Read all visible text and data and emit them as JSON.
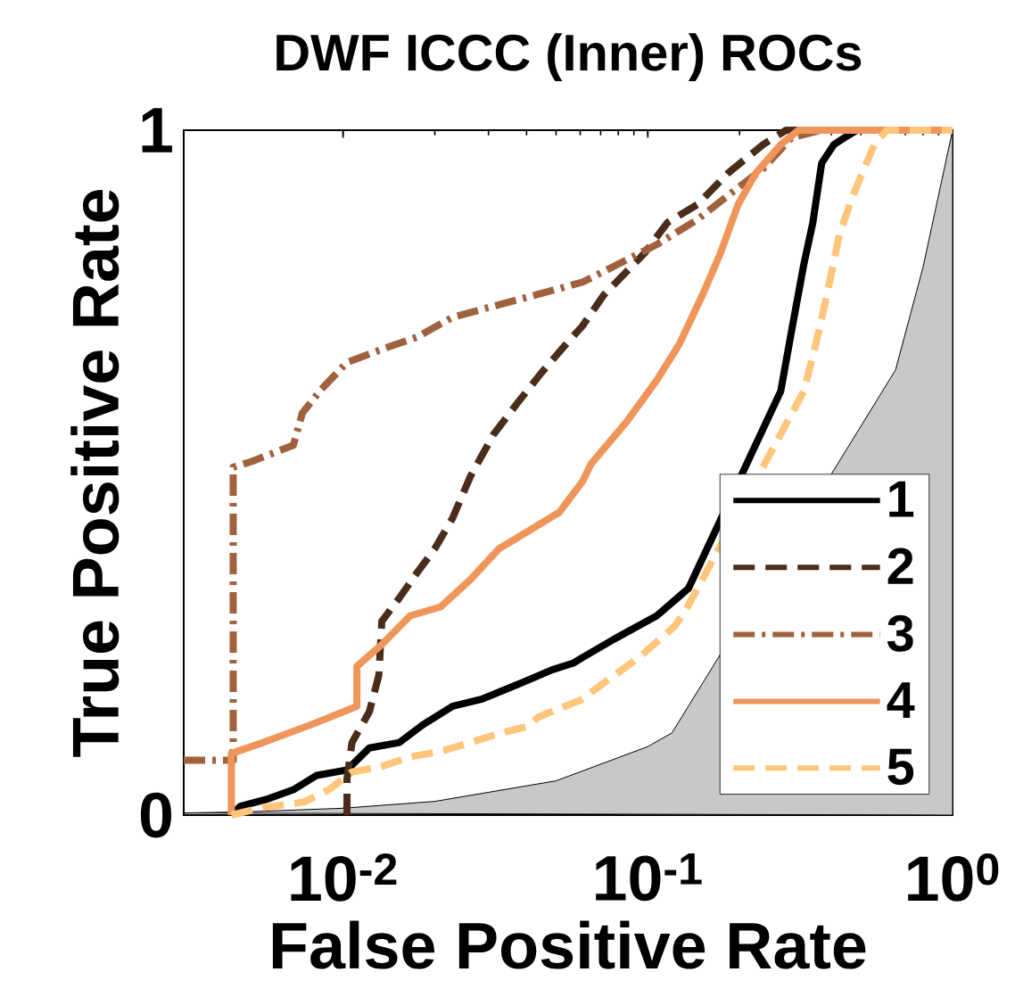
{
  "chart_data": {
    "type": "line",
    "title": "DWF ICCC (Inner) ROCs",
    "xlabel": "False Positive Rate",
    "ylabel": "True Positive Rate",
    "log": "x",
    "xlim": [
      0.003,
      1
    ],
    "ylim": [
      0,
      1
    ],
    "xticks": [
      {
        "value": 0.01,
        "label": "10$^{-2}$"
      },
      {
        "value": 0.1,
        "label": "10$^{-1}$"
      },
      {
        "value": 1,
        "label": "10$^{0}$"
      }
    ],
    "yticks": [
      0,
      1
    ],
    "grid": false,
    "legend": "bottom right",
    "marker": "none",
    "series": [
      {
        "type": "area",
        "color": "#c8c8c8",
        "x": [
          0.003,
          0.005,
          0.01,
          0.02,
          0.05,
          0.1,
          0.12,
          0.65,
          0.8,
          1
        ],
        "values": [
          0.003,
          0.005,
          0.01,
          0.02,
          0.05,
          0.1,
          0.12,
          0.65,
          0.8,
          1
        ]
      },
      {
        "name": "1",
        "color": "#000000",
        "line_style": "solid",
        "x": [
          0.0043,
          0.0046,
          0.0057,
          0.00687,
          0.0082,
          0.0103,
          0.0122,
          0.0153,
          0.0183,
          0.0229,
          0.0284,
          0.0371,
          0.0485,
          0.057,
          0.061,
          0.0776,
          0.107,
          0.136,
          0.273,
          0.296,
          0.325,
          0.348,
          0.372,
          0.408,
          0.442,
          0.485,
          1
        ],
        "values": [
          0,
          0.013,
          0.024,
          0.037,
          0.058,
          0.066,
          0.098,
          0.106,
          0.132,
          0.159,
          0.169,
          0.19,
          0.212,
          0.222,
          0.23,
          0.257,
          0.291,
          0.331,
          0.619,
          0.706,
          0.804,
          0.865,
          0.952,
          0.979,
          0.989,
          1,
          1
        ]
      },
      {
        "name": "2",
        "color": "#4a2c1a",
        "line_style": "dashed",
        "x": [
          0.0103,
          0.0103,
          0.0107,
          0.0122,
          0.0131,
          0.0134,
          0.0153,
          0.0175,
          0.02,
          0.0229,
          0.0262,
          0.0312,
          0.0371,
          0.0448,
          0.0533,
          0.061,
          0.0716,
          0.0973,
          0.116,
          0.146,
          0.183,
          0.239,
          0.284,
          1
        ],
        "values": [
          0,
          0.053,
          0.106,
          0.151,
          0.204,
          0.283,
          0.317,
          0.354,
          0.389,
          0.434,
          0.495,
          0.556,
          0.6,
          0.646,
          0.685,
          0.714,
          0.759,
          0.82,
          0.865,
          0.892,
          0.937,
          0.979,
          1,
          1
        ]
      },
      {
        "name": "3",
        "color": "#a0623d",
        "line_style": "dashdot",
        "x": [
          0.003,
          0.00436,
          0.00436,
          0.00499,
          0.00687,
          0.00735,
          0.0085,
          0.0103,
          0.0134,
          0.0175,
          0.0229,
          0.03,
          0.0425,
          0.061,
          0.107,
          0.146,
          0.19,
          0.239,
          0.296,
          0.37,
          1
        ],
        "values": [
          0.08,
          0.08,
          0.508,
          0.516,
          0.54,
          0.587,
          0.622,
          0.661,
          0.68,
          0.698,
          0.727,
          0.741,
          0.759,
          0.778,
          0.833,
          0.87,
          0.91,
          0.944,
          0.989,
          1,
          1
        ]
      },
      {
        "name": "4",
        "color": "#f0955a",
        "line_style": "solid",
        "x": [
          0.0043,
          0.0043,
          0.00547,
          0.00786,
          0.0107,
          0.0111,
          0.0111,
          0.0134,
          0.0166,
          0.0209,
          0.0262,
          0.0325,
          0.0407,
          0.0512,
          0.061,
          0.0652,
          0.0851,
          0.107,
          0.127,
          0.151,
          0.173,
          0.198,
          0.226,
          0.273,
          0.312,
          1
        ],
        "values": [
          0,
          0.09,
          0.106,
          0.132,
          0.156,
          0.159,
          0.217,
          0.249,
          0.291,
          0.304,
          0.344,
          0.389,
          0.415,
          0.442,
          0.487,
          0.513,
          0.574,
          0.635,
          0.688,
          0.759,
          0.82,
          0.892,
          0.937,
          0.979,
          1,
          1
        ]
      },
      {
        "name": "5",
        "color": "#ffc57a",
        "line_style": "dashed",
        "x": [
          0.0043,
          0.00547,
          0.00745,
          0.00898,
          0.0107,
          0.0134,
          0.0166,
          0.0209,
          0.0262,
          0.0325,
          0.0407,
          0.0437,
          0.061,
          0.0678,
          0.0935,
          0.122,
          0.132,
          0.325,
          0.356,
          0.387,
          0.425,
          0.466,
          0.505,
          0.554,
          0.609,
          1
        ],
        "values": [
          0,
          0.011,
          0.019,
          0.037,
          0.063,
          0.071,
          0.085,
          0.093,
          0.106,
          0.119,
          0.13,
          0.143,
          0.169,
          0.185,
          0.23,
          0.275,
          0.296,
          0.619,
          0.688,
          0.759,
          0.847,
          0.899,
          0.937,
          0.979,
          1,
          1
        ]
      }
    ]
  }
}
